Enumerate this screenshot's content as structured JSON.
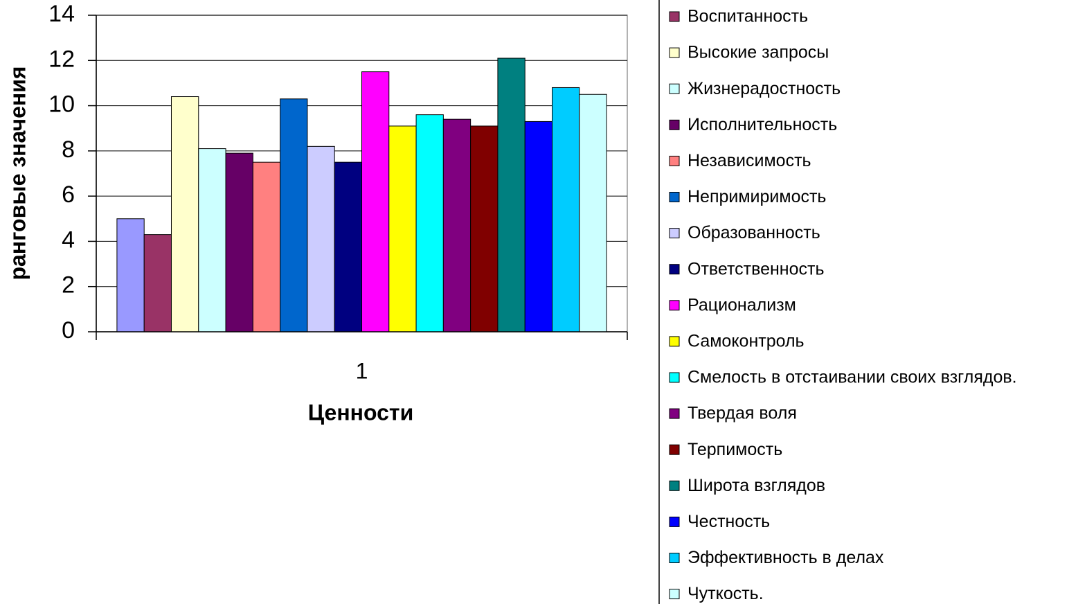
{
  "chart_data": {
    "type": "bar",
    "xlabel": "Ценности",
    "ylabel": "ранговые значения",
    "categories": [
      "1"
    ],
    "series": [
      {
        "name": null,
        "color": "#9999ff",
        "values": [
          5.0
        ]
      },
      {
        "name": "Воспитанность",
        "color": "#993366",
        "values": [
          4.3
        ]
      },
      {
        "name": "Высокие запросы",
        "color": "#ffffcc",
        "values": [
          10.4
        ]
      },
      {
        "name": "Жизнерадостность",
        "color": "#ccffff",
        "values": [
          8.1
        ]
      },
      {
        "name": "Исполнительность",
        "color": "#660066",
        "values": [
          7.9
        ]
      },
      {
        "name": "Независимость",
        "color": "#ff8080",
        "values": [
          7.5
        ]
      },
      {
        "name": "Непримиримость",
        "color": "#0066cc",
        "values": [
          10.3
        ]
      },
      {
        "name": "Образованность",
        "color": "#ccccff",
        "values": [
          8.2
        ]
      },
      {
        "name": "Ответственность",
        "color": "#000080",
        "values": [
          7.5
        ]
      },
      {
        "name": "Рационализм",
        "color": "#ff00ff",
        "values": [
          11.5
        ]
      },
      {
        "name": "Самоконтроль",
        "color": "#ffff00",
        "values": [
          9.1
        ]
      },
      {
        "name": "Смелость в отстаивании своих взглядов.",
        "color": "#00ffff",
        "values": [
          9.6
        ]
      },
      {
        "name": "Твердая воля",
        "color": "#800080",
        "values": [
          9.4
        ]
      },
      {
        "name": "Терпимость",
        "color": "#800000",
        "values": [
          9.1
        ]
      },
      {
        "name": "Широта взглядов",
        "color": "#008080",
        "values": [
          12.1
        ]
      },
      {
        "name": "Честность",
        "color": "#0000ff",
        "values": [
          9.3
        ]
      },
      {
        "name": "Эффективность в делах",
        "color": "#00ccff",
        "values": [
          10.8
        ]
      },
      {
        "name": "Чуткость.",
        "color": "#ccffff",
        "values": [
          10.5
        ]
      }
    ],
    "ylim": [
      0,
      14
    ],
    "yticks": [
      0,
      2,
      4,
      6,
      8,
      10,
      12,
      14
    ],
    "grid": true,
    "legend": "right"
  }
}
